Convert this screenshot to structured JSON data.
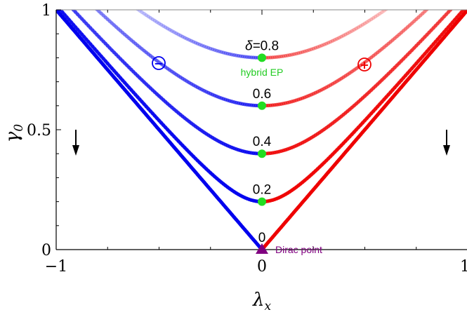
{
  "chart_data": {
    "type": "line",
    "xlabel": "λ",
    "xlabel_sub": "x",
    "ylabel": "γ",
    "ylabel_sub": "0",
    "xlim": [
      -1,
      1
    ],
    "ylim": [
      0,
      1
    ],
    "x_ticks": [
      {
        "value": -1,
        "label": "−1"
      },
      {
        "value": 0,
        "label": "0"
      },
      {
        "value": 1,
        "label": "1"
      }
    ],
    "y_ticks": [
      {
        "value": 0,
        "label": "0"
      },
      {
        "value": 0.5,
        "label": "0.5"
      },
      {
        "value": 1,
        "label": "1"
      }
    ],
    "grid": false,
    "series": [
      {
        "delta": 0,
        "label": "0",
        "formula": "gamma0 = sqrt(lambda_x^2 + delta^2)"
      },
      {
        "delta": 0.2,
        "label": "0.2"
      },
      {
        "delta": 0.4,
        "label": "0.4"
      },
      {
        "delta": 0.6,
        "label": "0.6"
      },
      {
        "delta": 0.8,
        "label": "0.8",
        "label_prefix": "δ="
      }
    ],
    "colors": {
      "left": "#0000ee",
      "right": "#ee0000",
      "ep_marker": "#22dd22",
      "dirac_marker": "#800080"
    },
    "annotations": {
      "hybrid_ep": "hybrid EP",
      "dirac_point": "Dirac point",
      "minus_sign": "−",
      "plus_sign": "+"
    }
  }
}
